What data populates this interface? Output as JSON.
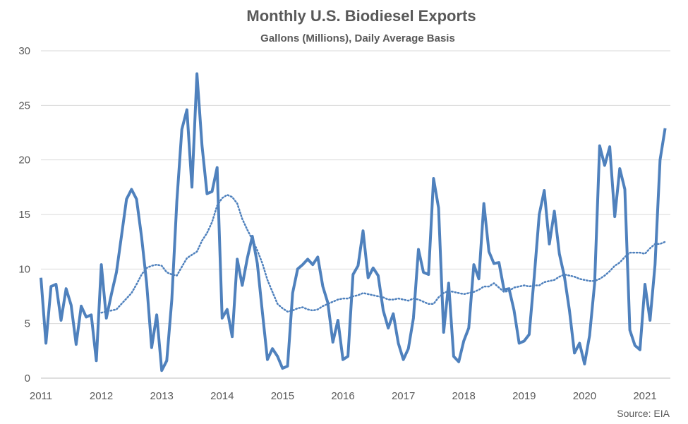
{
  "chart_data": {
    "type": "line",
    "title": "Monthly U.S. Biodiesel Exports",
    "subtitle": "Gallons (Millions), Daily Average Basis",
    "source": "Source: EIA",
    "xlabel": "",
    "ylabel": "",
    "x_range": [
      2011.0,
      2021.42
    ],
    "ylim": [
      0,
      30
    ],
    "y_ticks": [
      "0",
      "5",
      "10",
      "15",
      "20",
      "25",
      "30"
    ],
    "x_ticks": [
      "2011",
      "2012",
      "2013",
      "2014",
      "2015",
      "2016",
      "2017",
      "2018",
      "2019",
      "2020",
      "2021"
    ],
    "grid": "horizontal",
    "series_color": "#4F81BD",
    "series": [
      {
        "style": "solid",
        "x": [
          2011.0,
          2011.083,
          2011.167,
          2011.25,
          2011.333,
          2011.417,
          2011.5,
          2011.583,
          2011.667,
          2011.75,
          2011.833,
          2011.917,
          2012.0,
          2012.083,
          2012.167,
          2012.25,
          2012.333,
          2012.417,
          2012.5,
          2012.583,
          2012.667,
          2012.75,
          2012.833,
          2012.917,
          2013.0,
          2013.083,
          2013.167,
          2013.25,
          2013.333,
          2013.417,
          2013.5,
          2013.583,
          2013.667,
          2013.75,
          2013.833,
          2013.917,
          2014.0,
          2014.083,
          2014.167,
          2014.25,
          2014.333,
          2014.417,
          2014.5,
          2014.583,
          2014.667,
          2014.75,
          2014.833,
          2014.917,
          2015.0,
          2015.083,
          2015.167,
          2015.25,
          2015.333,
          2015.417,
          2015.5,
          2015.583,
          2015.667,
          2015.75,
          2015.833,
          2015.917,
          2016.0,
          2016.083,
          2016.167,
          2016.25,
          2016.333,
          2016.417,
          2016.5,
          2016.583,
          2016.667,
          2016.75,
          2016.833,
          2016.917,
          2017.0,
          2017.083,
          2017.167,
          2017.25,
          2017.333,
          2017.417,
          2017.5,
          2017.583,
          2017.667,
          2017.75,
          2017.833,
          2017.917,
          2018.0,
          2018.083,
          2018.167,
          2018.25,
          2018.333,
          2018.417,
          2018.5,
          2018.583,
          2018.667,
          2018.75,
          2018.833,
          2018.917,
          2019.0,
          2019.083,
          2019.167,
          2019.25,
          2019.333,
          2019.417,
          2019.5,
          2019.583,
          2019.667,
          2019.75,
          2019.833,
          2019.917,
          2020.0,
          2020.083,
          2020.167,
          2020.25,
          2020.333,
          2020.417,
          2020.5,
          2020.583,
          2020.667,
          2020.75,
          2020.833,
          2020.917,
          2021.0,
          2021.083,
          2021.167,
          2021.25,
          2021.333
        ],
        "values": [
          9.2,
          3.2,
          8.4,
          8.6,
          5.3,
          8.2,
          6.7,
          3.1,
          6.6,
          5.6,
          5.8,
          1.6,
          10.4,
          5.5,
          7.7,
          9.7,
          13.0,
          16.4,
          17.3,
          16.4,
          12.9,
          8.7,
          2.8,
          5.8,
          0.7,
          1.6,
          7.2,
          16.2,
          22.8,
          24.6,
          17.5,
          27.9,
          21.3,
          16.9,
          17.1,
          19.3,
          5.5,
          6.3,
          3.8,
          10.9,
          8.5,
          11.0,
          13.0,
          10.5,
          6.0,
          1.7,
          2.7,
          2.0,
          0.9,
          1.1,
          7.8,
          10.0,
          10.4,
          10.9,
          10.4,
          11.1,
          8.4,
          6.9,
          3.3,
          5.3,
          1.7,
          2.0,
          9.5,
          10.3,
          13.5,
          9.2,
          10.1,
          9.4,
          6.2,
          4.6,
          5.9,
          3.2,
          1.7,
          2.7,
          5.5,
          11.8,
          9.7,
          9.5,
          18.3,
          15.6,
          4.2,
          8.7,
          2.0,
          1.5,
          3.4,
          4.6,
          10.4,
          9.1,
          16.0,
          11.6,
          10.5,
          10.6,
          8.1,
          8.2,
          6.2,
          3.2,
          3.4,
          4.0,
          9.3,
          15.0,
          17.2,
          12.3,
          15.3,
          11.4,
          9.3,
          6.2,
          2.3,
          3.2,
          1.3,
          3.9,
          8.7,
          21.3,
          19.5,
          21.2,
          14.8,
          19.2,
          17.3,
          4.4,
          3.0,
          2.6,
          8.6,
          5.3,
          10.4,
          20.0,
          22.9
        ]
      },
      {
        "style": "dotted",
        "x": [
          2012.0,
          2012.083,
          2012.167,
          2012.25,
          2012.333,
          2012.417,
          2012.5,
          2012.583,
          2012.667,
          2012.75,
          2012.833,
          2012.917,
          2013.0,
          2013.083,
          2013.167,
          2013.25,
          2013.333,
          2013.417,
          2013.5,
          2013.583,
          2013.667,
          2013.75,
          2013.833,
          2013.917,
          2014.0,
          2014.083,
          2014.167,
          2014.25,
          2014.333,
          2014.417,
          2014.5,
          2014.583,
          2014.667,
          2014.75,
          2014.833,
          2014.917,
          2015.0,
          2015.083,
          2015.167,
          2015.25,
          2015.333,
          2015.417,
          2015.5,
          2015.583,
          2015.667,
          2015.75,
          2015.833,
          2015.917,
          2016.0,
          2016.083,
          2016.167,
          2016.25,
          2016.333,
          2016.417,
          2016.5,
          2016.583,
          2016.667,
          2016.75,
          2016.833,
          2016.917,
          2017.0,
          2017.083,
          2017.167,
          2017.25,
          2017.333,
          2017.417,
          2017.5,
          2017.583,
          2017.667,
          2017.75,
          2017.833,
          2017.917,
          2018.0,
          2018.083,
          2018.167,
          2018.25,
          2018.333,
          2018.417,
          2018.5,
          2018.583,
          2018.667,
          2018.75,
          2018.833,
          2018.917,
          2019.0,
          2019.083,
          2019.167,
          2019.25,
          2019.333,
          2019.417,
          2019.5,
          2019.583,
          2019.667,
          2019.75,
          2019.833,
          2019.917,
          2020.0,
          2020.083,
          2020.167,
          2020.25,
          2020.333,
          2020.417,
          2020.5,
          2020.583,
          2020.667,
          2020.75,
          2020.833,
          2020.917,
          2021.0,
          2021.083,
          2021.167,
          2021.25,
          2021.333
        ],
        "values": [
          6.0,
          6.1,
          6.2,
          6.3,
          6.8,
          7.3,
          7.8,
          8.6,
          9.5,
          10.1,
          10.3,
          10.4,
          10.3,
          9.7,
          9.5,
          9.4,
          10.2,
          11.0,
          11.3,
          11.6,
          12.6,
          13.3,
          14.3,
          15.8,
          16.5,
          16.8,
          16.6,
          16.0,
          14.6,
          13.6,
          12.7,
          11.7,
          10.5,
          9.0,
          7.9,
          6.8,
          6.4,
          6.1,
          6.2,
          6.4,
          6.5,
          6.3,
          6.2,
          6.3,
          6.6,
          6.8,
          7.0,
          7.2,
          7.3,
          7.3,
          7.5,
          7.6,
          7.8,
          7.7,
          7.6,
          7.5,
          7.4,
          7.2,
          7.2,
          7.3,
          7.2,
          7.1,
          7.3,
          7.2,
          7.0,
          6.8,
          6.8,
          7.4,
          7.8,
          8.0,
          7.9,
          7.8,
          7.7,
          7.8,
          7.9,
          8.1,
          8.4,
          8.4,
          8.7,
          8.3,
          7.9,
          8.0,
          8.3,
          8.4,
          8.5,
          8.4,
          8.5,
          8.5,
          8.8,
          8.9,
          9.0,
          9.3,
          9.5,
          9.4,
          9.3,
          9.1,
          9.0,
          8.9,
          8.9,
          9.1,
          9.4,
          9.8,
          10.3,
          10.6,
          11.1,
          11.5,
          11.5,
          11.5,
          11.4,
          11.9,
          12.3,
          12.3,
          12.5
        ]
      }
    ]
  }
}
